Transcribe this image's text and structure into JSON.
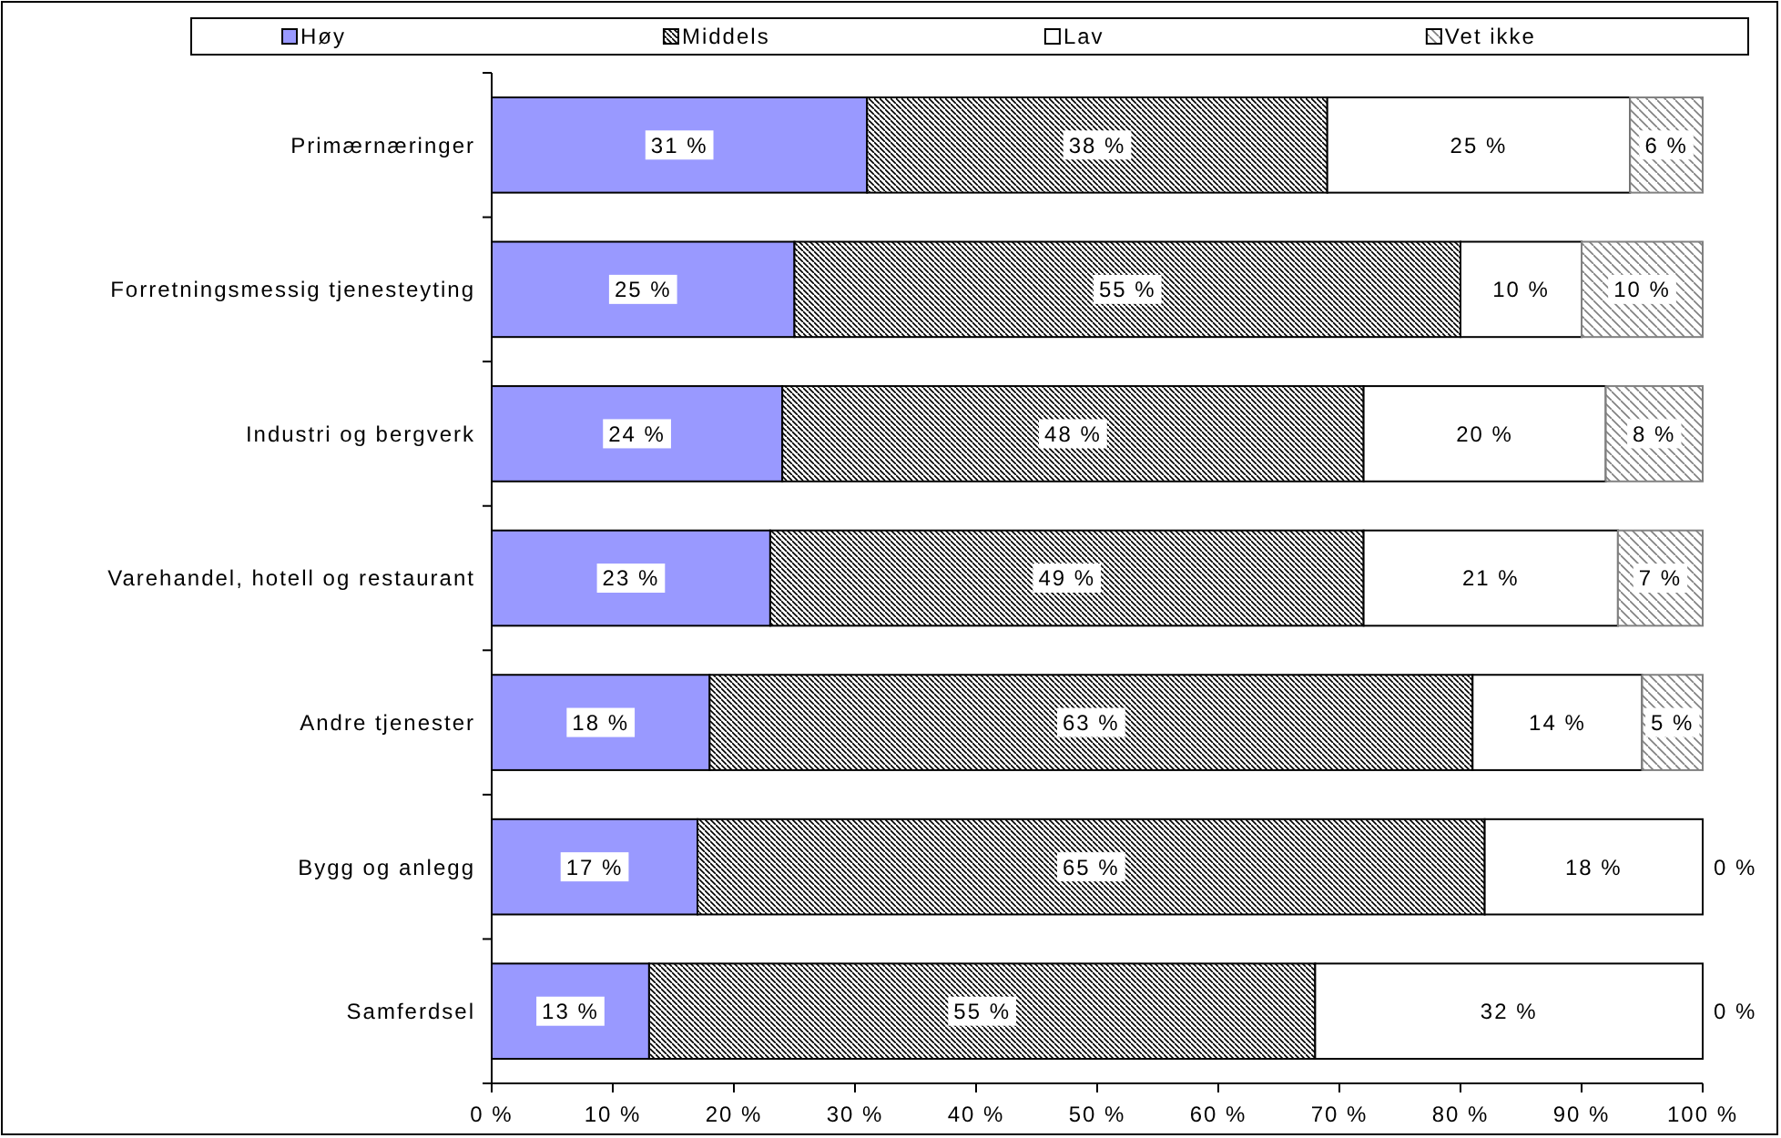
{
  "chart_data": {
    "type": "bar",
    "orientation": "horizontal",
    "stacked": true,
    "categories": [
      "Primærnæringer",
      "Forretningsmessig tjenesteyting",
      "Industri og bergverk",
      "Varehandel, hotell og restaurant",
      "Andre tjenester",
      "Bygg og anlegg",
      "Samferdsel"
    ],
    "series": [
      {
        "name": "Høy",
        "color": "#9999ff",
        "values": [
          31,
          25,
          24,
          23,
          18,
          17,
          13
        ],
        "value_labels": [
          "31 %",
          "25 %",
          "24 %",
          "23 %",
          "18 %",
          "17 %",
          "13 %"
        ]
      },
      {
        "name": "Middels",
        "color": "#000000",
        "values": [
          38,
          55,
          48,
          49,
          63,
          65,
          55
        ],
        "value_labels": [
          "38 %",
          "55 %",
          "48 %",
          "49 %",
          "63 %",
          "65 %",
          "55 %"
        ]
      },
      {
        "name": "Lav",
        "color": "#ffffff",
        "values": [
          25,
          10,
          20,
          21,
          14,
          18,
          32
        ],
        "value_labels": [
          "25 %",
          "10 %",
          "20 %",
          "21 %",
          "14 %",
          "18 %",
          "32 %"
        ]
      },
      {
        "name": "Vet ikke",
        "color": "#808080",
        "values": [
          6,
          10,
          8,
          7,
          5,
          0,
          0
        ],
        "value_labels": [
          "6 %",
          "10 %",
          "8 %",
          "7 %",
          "5 %",
          "0 %",
          "0 %"
        ]
      }
    ],
    "xlim": [
      0,
      100
    ],
    "xticks": [
      {
        "value": 0,
        "label": "0 %"
      },
      {
        "value": 10,
        "label": "10 %"
      },
      {
        "value": 20,
        "label": "20 %"
      },
      {
        "value": 30,
        "label": "30 %"
      },
      {
        "value": 40,
        "label": "40 %"
      },
      {
        "value": 50,
        "label": "50 %"
      },
      {
        "value": 60,
        "label": "60 %"
      },
      {
        "value": 70,
        "label": "70 %"
      },
      {
        "value": 80,
        "label": "80 %"
      },
      {
        "value": 90,
        "label": "90 %"
      },
      {
        "value": 100,
        "label": "100 %"
      }
    ],
    "legend": "top"
  }
}
